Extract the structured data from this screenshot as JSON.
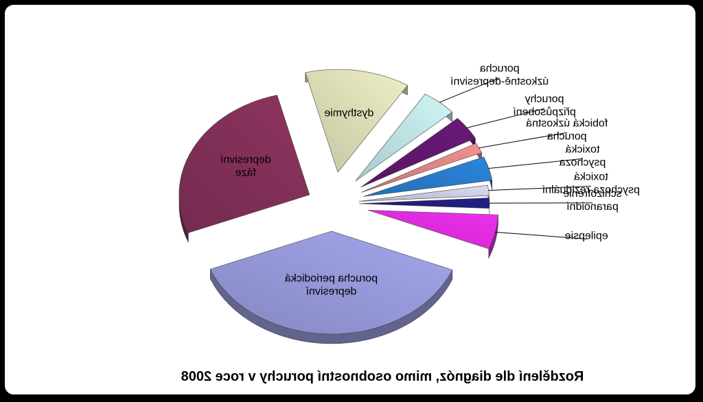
{
  "chart_data": {
    "type": "pie",
    "title": "Rozdělení dle diagnóz, mimo osobnostní poruchy v roce 2008",
    "mirrored": true,
    "style": "3d-exploded",
    "slices": [
      {
        "label": "depresivní fáze",
        "value": 25,
        "color": "#8e3460"
      },
      {
        "label": "porucha periodická depresivní",
        "value": 35,
        "color": "#a3a6ec"
      },
      {
        "label": "epilepsie",
        "value": 5,
        "color": "#f030f0"
      },
      {
        "label": "schizofrenie paranoidní",
        "value": 1.5,
        "color": "#23208a"
      },
      {
        "label": "toxická psychoza-reziduální",
        "value": 1.5,
        "color": "#dcdcf4"
      },
      {
        "label": "toxická psychoza",
        "value": 3.5,
        "color": "#2b86dd"
      },
      {
        "label": "fobická úzkostná porucha",
        "value": 1.5,
        "color": "#f29090"
      },
      {
        "label": "poruchy přizpůsobení",
        "value": 3.5,
        "color": "#6a1a78"
      },
      {
        "label": "porucha úzkostně-depresivní",
        "value": 4,
        "color": "#cff6f6"
      },
      {
        "label": "dysthymie",
        "value": 12,
        "color": "#efefc6"
      }
    ]
  }
}
